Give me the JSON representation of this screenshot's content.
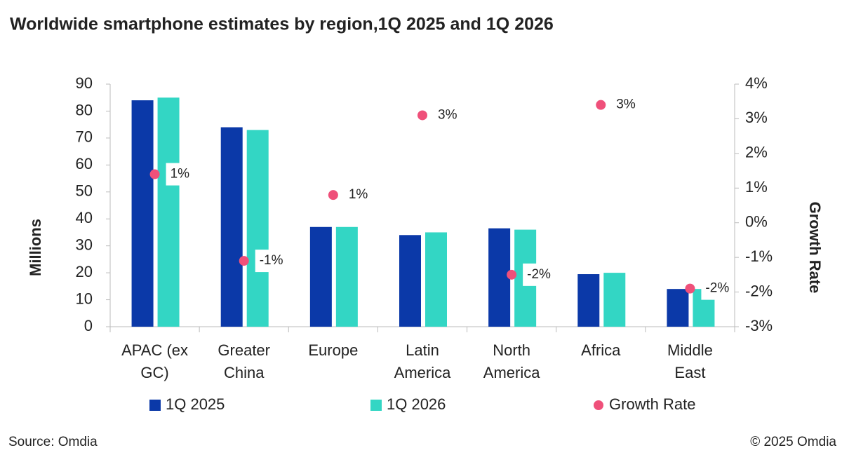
{
  "chart_data": {
    "type": "bar_dot",
    "title": "Worldwide smartphone estimates by region,1Q 2025 and 1Q 2026",
    "y_label": "Millions",
    "y2_label": "Growth Rate",
    "source": "Source: Omdia",
    "copyright": "© 2025 Omdia",
    "categories": [
      "APAC (ex GC)",
      "Greater China",
      "Europe",
      "Latin America",
      "North America",
      "Africa",
      "Middle East"
    ],
    "series": [
      {
        "name": "1Q 2025",
        "color": "#0b39a8",
        "values": [
          84,
          74,
          37,
          34,
          36.5,
          19.5,
          14
        ]
      },
      {
        "name": "1Q 2026",
        "color": "#33d6c4",
        "values": [
          85,
          73,
          37,
          35,
          36,
          20,
          14
        ]
      },
      {
        "name": "Growth Rate",
        "color": "#ef507a",
        "axis": "y2",
        "values": [
          1.4,
          -1.1,
          0.8,
          3.1,
          -1.5,
          3.4,
          -1.9
        ],
        "value_labels": [
          "1%",
          "-1%",
          "1%",
          "3%",
          "-2%",
          "3%",
          "-2%"
        ]
      }
    ],
    "ylim": [
      0,
      90
    ],
    "yticks": [
      0,
      10,
      20,
      30,
      40,
      50,
      60,
      70,
      80,
      90
    ],
    "y2lim": [
      -3,
      4
    ],
    "y2ticks": [
      {
        "value": -3,
        "label": "-3%"
      },
      {
        "value": -2,
        "label": "-2%"
      },
      {
        "value": -1,
        "label": "-1%"
      },
      {
        "value": 0,
        "label": "0%"
      },
      {
        "value": 1,
        "label": "1%"
      },
      {
        "value": 2,
        "label": "2%"
      },
      {
        "value": 3,
        "label": "3%"
      },
      {
        "value": 4,
        "label": "4%"
      }
    ]
  }
}
